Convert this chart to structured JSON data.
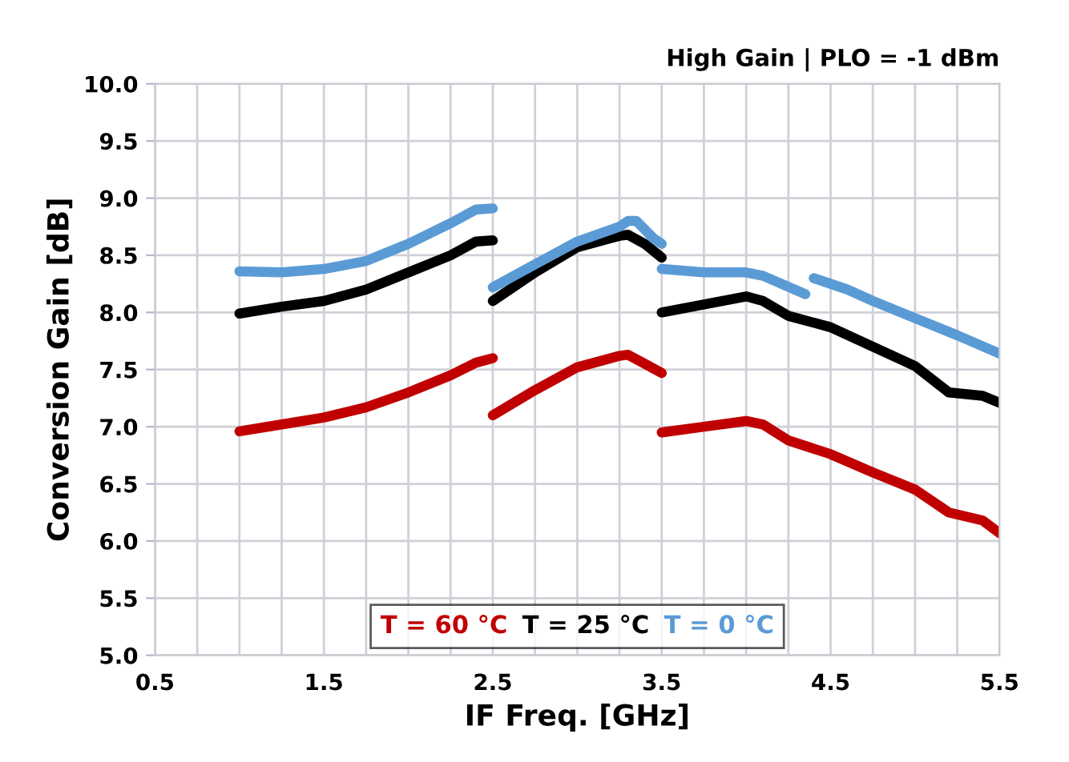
{
  "chart_data": {
    "type": "line",
    "title": "High Gain | PLO = -1 dBm",
    "xlabel": "IF Freq. [GHz]",
    "ylabel": "Conversion Gain [dB]",
    "xlim": [
      0.5,
      5.5
    ],
    "ylim": [
      5.0,
      10.0
    ],
    "xticks": [
      0.5,
      {
        "value": 0.75,
        "label": null
      },
      {
        "value": 1.0,
        "label": null
      },
      {
        "value": 1.25,
        "label": null
      },
      1.5,
      {
        "value": 1.75,
        "label": null
      },
      {
        "value": 2.0,
        "label": null
      },
      {
        "value": 2.25,
        "label": null
      },
      2.5,
      {
        "value": 2.75,
        "label": null
      },
      {
        "value": 3.0,
        "label": null
      },
      {
        "value": 3.25,
        "label": null
      },
      3.5,
      {
        "value": 3.75,
        "label": null
      },
      {
        "value": 4.0,
        "label": null
      },
      {
        "value": 4.25,
        "label": null
      },
      4.5,
      {
        "value": 4.75,
        "label": null
      },
      {
        "value": 5.0,
        "label": null
      },
      {
        "value": 5.25,
        "label": null
      },
      5.5
    ],
    "yticks": [
      {
        "value": 5.0,
        "label": "5.0"
      },
      {
        "value": 5.5,
        "label": "5.5"
      },
      {
        "value": 6.0,
        "label": "6.0"
      },
      {
        "value": 6.5,
        "label": "6.5"
      },
      {
        "value": 7.0,
        "label": "7.0"
      },
      {
        "value": 7.5,
        "label": "7.5"
      },
      {
        "value": 8.0,
        "label": "8.0"
      },
      {
        "value": 8.5,
        "label": "8.5"
      },
      {
        "value": 9.0,
        "label": "9.0"
      },
      {
        "value": 9.5,
        "label": "9.5"
      },
      {
        "value": 10.0,
        "label": "10.0"
      }
    ],
    "grid": true,
    "legend": "bottom",
    "line_style": "solid",
    "marker": "none",
    "series": [
      {
        "name": "T = 60 °C",
        "color": "#c00000",
        "x": [
          1.0,
          1.25,
          1.5,
          1.75,
          2.0,
          2.25,
          2.4,
          2.5,
          null,
          2.5,
          2.75,
          3.0,
          3.25,
          3.3,
          3.4,
          3.5,
          null,
          3.5,
          3.75,
          4.0,
          4.1,
          4.25,
          4.5,
          4.75,
          5.0,
          5.2,
          5.4,
          5.5
        ],
        "values": [
          6.96,
          7.02,
          7.08,
          7.17,
          7.3,
          7.45,
          7.56,
          7.6,
          null,
          7.1,
          7.32,
          7.52,
          7.62,
          7.63,
          7.55,
          7.47,
          null,
          6.95,
          7.0,
          7.05,
          7.02,
          6.88,
          6.76,
          6.6,
          6.45,
          6.25,
          6.18,
          6.07
        ]
      },
      {
        "name": "T = 25 °C",
        "color": "#000000",
        "x": [
          1.0,
          1.25,
          1.5,
          1.75,
          2.0,
          2.25,
          2.4,
          2.5,
          null,
          2.5,
          2.75,
          3.0,
          3.25,
          3.3,
          3.4,
          3.5,
          null,
          3.5,
          3.75,
          4.0,
          4.1,
          4.25,
          4.5,
          4.75,
          5.0,
          5.2,
          5.4,
          5.5
        ],
        "values": [
          7.99,
          8.05,
          8.1,
          8.2,
          8.35,
          8.5,
          8.62,
          8.63,
          null,
          8.1,
          8.35,
          8.57,
          8.67,
          8.68,
          8.6,
          8.48,
          null,
          8.0,
          8.07,
          8.14,
          8.1,
          7.97,
          7.87,
          7.7,
          7.53,
          7.3,
          7.27,
          7.21
        ]
      },
      {
        "name": "T = 0 °C",
        "color": "#5b9bd5",
        "x": [
          1.0,
          1.25,
          1.5,
          1.75,
          2.0,
          2.25,
          2.4,
          2.5,
          null,
          2.5,
          2.75,
          3.0,
          3.25,
          3.3,
          3.35,
          3.45,
          3.5,
          null,
          3.5,
          3.75,
          4.0,
          4.1,
          4.35,
          null,
          4.4,
          4.6,
          4.75,
          5.0,
          5.25,
          5.5
        ],
        "values": [
          8.36,
          8.35,
          8.38,
          8.45,
          8.6,
          8.78,
          8.9,
          8.91,
          null,
          8.22,
          8.42,
          8.62,
          8.75,
          8.8,
          8.8,
          8.65,
          8.6,
          null,
          8.38,
          8.35,
          8.35,
          8.32,
          8.16,
          null,
          8.3,
          8.2,
          8.1,
          7.95,
          7.8,
          7.64
        ]
      }
    ]
  }
}
